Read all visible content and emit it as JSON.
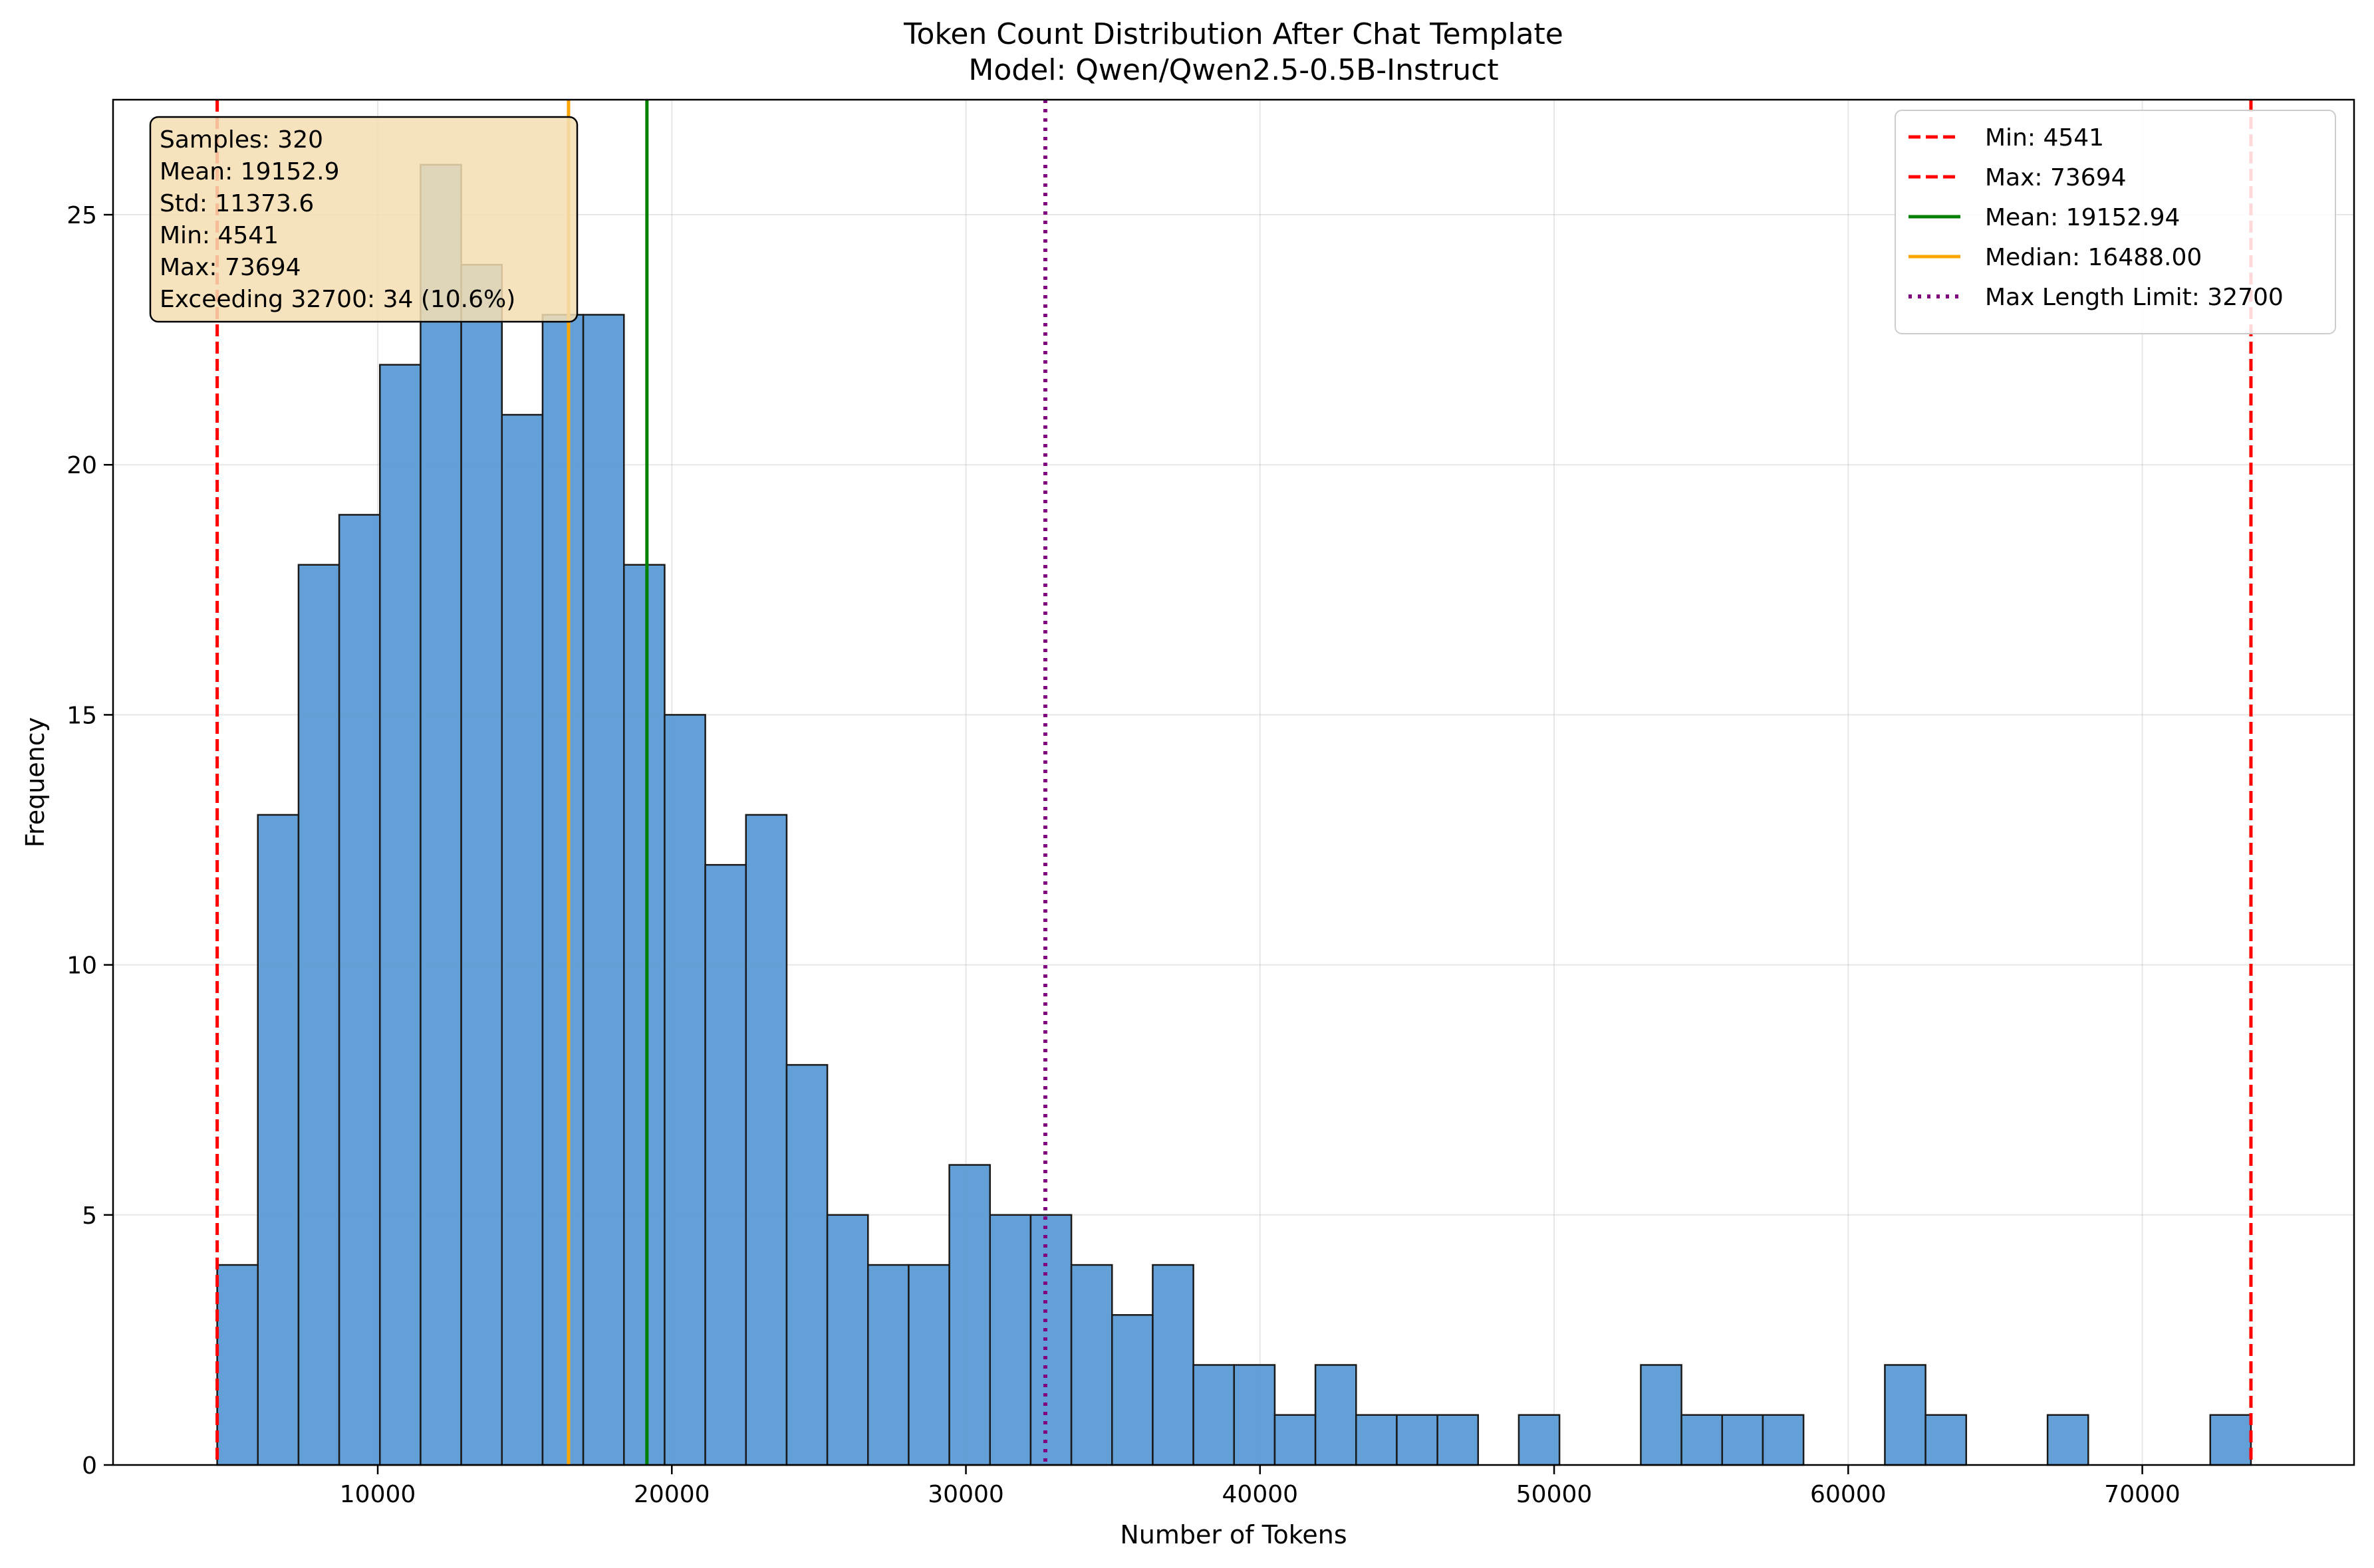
{
  "chart_data": {
    "type": "bar",
    "title": "Token Count Distribution After Chat Template",
    "subtitle": "Model: Qwen/Qwen2.5-0.5B-Instruct",
    "xlabel": "Number of Tokens",
    "ylabel": "Frequency",
    "xlim": [
      1000,
      77200
    ],
    "ylim": [
      0,
      27.3
    ],
    "x_ticks": [
      10000,
      20000,
      30000,
      40000,
      50000,
      60000,
      70000
    ],
    "x_tick_labels": [
      "10000",
      "20000",
      "30000",
      "40000",
      "50000",
      "60000",
      "70000"
    ],
    "y_ticks": [
      0,
      5,
      10,
      15,
      20,
      25
    ],
    "y_tick_labels": [
      "0",
      "5",
      "10",
      "15",
      "20",
      "25"
    ],
    "grid": true,
    "bins": {
      "start": 4541,
      "end": 73694,
      "count": 50,
      "counts": [
        4,
        13,
        18,
        19,
        22,
        26,
        24,
        21,
        23,
        23,
        18,
        15,
        12,
        13,
        8,
        5,
        4,
        4,
        6,
        5,
        5,
        4,
        3,
        4,
        2,
        2,
        1,
        2,
        1,
        1,
        1,
        0,
        1,
        0,
        0,
        2,
        1,
        1,
        1,
        0,
        0,
        2,
        1,
        0,
        0,
        1,
        0,
        0,
        0,
        1
      ]
    },
    "bar_color": "#5b9bd5",
    "reference_lines": [
      {
        "label": "Min: 4541",
        "x": 4541,
        "color": "#ff0000",
        "style": "dashed"
      },
      {
        "label": "Max: 73694",
        "x": 73694,
        "color": "#ff0000",
        "style": "dashed"
      },
      {
        "label": "Mean: 19152.94",
        "x": 19152.94,
        "color": "#008000",
        "style": "solid"
      },
      {
        "label": "Median: 16488.00",
        "x": 16488.0,
        "color": "#ffa500",
        "style": "solid"
      },
      {
        "label": "Max Length Limit: 32700",
        "x": 32700,
        "color": "#800080",
        "style": "dotted"
      }
    ],
    "legend_position": "top-right",
    "stats_box": {
      "position": "top-left",
      "lines": [
        "Samples: 320",
        "Mean: 19152.9",
        "Std: 11373.6",
        "Min: 4541",
        "Max: 73694",
        "Exceeding 32700: 34 (10.6%)"
      ]
    }
  }
}
